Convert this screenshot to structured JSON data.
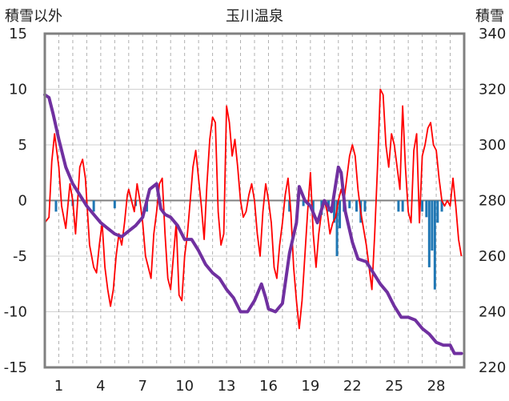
{
  "chart_data": {
    "type": "line",
    "title": "玉川温泉",
    "left_axis_label": "積雪以外",
    "right_axis_label": "積雪",
    "ylim_left": [
      -15,
      15
    ],
    "yticks_left": [
      15,
      10,
      5,
      0,
      -5,
      -10,
      -15
    ],
    "ylim_right": [
      220,
      340
    ],
    "yticks_right": [
      340,
      320,
      300,
      280,
      260,
      240,
      220
    ],
    "xlim": [
      0,
      30
    ],
    "xticks": [
      1,
      4,
      7,
      10,
      13,
      16,
      19,
      22,
      25,
      28
    ],
    "grid": {
      "horizontal": true,
      "vertical_dashed": true
    },
    "legend": "none",
    "colors": {
      "temperature": "#ff0000",
      "snow_depth": "#7030a0",
      "precipitation": "#1f77b4",
      "frame": "#808080",
      "zero_line": "#808080",
      "grid": "#d0d0d0"
    },
    "series": [
      {
        "role": "temperature",
        "axis": "left",
        "points": [
          [
            0.0,
            -2.0
          ],
          [
            0.3,
            -1.5
          ],
          [
            0.5,
            3.5
          ],
          [
            0.7,
            6.0
          ],
          [
            1.0,
            3.0
          ],
          [
            1.2,
            -0.5
          ],
          [
            1.5,
            -2.5
          ],
          [
            1.8,
            1.5
          ],
          [
            2.0,
            0.0
          ],
          [
            2.2,
            -3.0
          ],
          [
            2.5,
            3.0
          ],
          [
            2.7,
            3.7
          ],
          [
            2.9,
            2.0
          ],
          [
            3.2,
            -4.0
          ],
          [
            3.5,
            -6.0
          ],
          [
            3.7,
            -6.5
          ],
          [
            3.9,
            -4.0
          ],
          [
            4.1,
            -2.0
          ],
          [
            4.3,
            -6.0
          ],
          [
            4.5,
            -8.0
          ],
          [
            4.7,
            -9.5
          ],
          [
            4.9,
            -8.0
          ],
          [
            5.1,
            -5.0
          ],
          [
            5.3,
            -3.0
          ],
          [
            5.5,
            -4.0
          ],
          [
            5.7,
            -2.0
          ],
          [
            5.9,
            0.5
          ],
          [
            6.0,
            1.0
          ],
          [
            6.2,
            0.0
          ],
          [
            6.4,
            -1.0
          ],
          [
            6.6,
            1.5
          ],
          [
            6.8,
            0.0
          ],
          [
            7.0,
            -2.0
          ],
          [
            7.2,
            -5.0
          ],
          [
            7.4,
            -6.0
          ],
          [
            7.6,
            -7.0
          ],
          [
            7.8,
            -3.0
          ],
          [
            8.0,
            -1.0
          ],
          [
            8.2,
            1.5
          ],
          [
            8.4,
            2.0
          ],
          [
            8.6,
            -3.0
          ],
          [
            8.8,
            -7.0
          ],
          [
            9.0,
            -8.0
          ],
          [
            9.2,
            -5.0
          ],
          [
            9.4,
            -2.0
          ],
          [
            9.6,
            -8.5
          ],
          [
            9.8,
            -9.0
          ],
          [
            10.0,
            -5.0
          ],
          [
            10.2,
            -3.0
          ],
          [
            10.4,
            0.0
          ],
          [
            10.6,
            3.0
          ],
          [
            10.8,
            4.5
          ],
          [
            11.0,
            2.0
          ],
          [
            11.2,
            -0.5
          ],
          [
            11.4,
            -3.5
          ],
          [
            11.6,
            1.5
          ],
          [
            11.8,
            5.5
          ],
          [
            12.0,
            7.5
          ],
          [
            12.2,
            7.0
          ],
          [
            12.4,
            -1.0
          ],
          [
            12.6,
            -4.0
          ],
          [
            12.8,
            -3.0
          ],
          [
            13.0,
            8.5
          ],
          [
            13.2,
            7.0
          ],
          [
            13.4,
            4.0
          ],
          [
            13.6,
            5.5
          ],
          [
            13.8,
            3.0
          ],
          [
            14.0,
            0.0
          ],
          [
            14.2,
            -1.5
          ],
          [
            14.4,
            -1.0
          ],
          [
            14.6,
            0.5
          ],
          [
            14.8,
            1.5
          ],
          [
            15.0,
            0.0
          ],
          [
            15.2,
            -3.0
          ],
          [
            15.4,
            -5.0
          ],
          [
            15.6,
            -1.0
          ],
          [
            15.8,
            1.5
          ],
          [
            16.0,
            0.0
          ],
          [
            16.2,
            -2.0
          ],
          [
            16.4,
            -6.0
          ],
          [
            16.6,
            -7.0
          ],
          [
            16.8,
            -4.0
          ],
          [
            17.0,
            -2.0
          ],
          [
            17.2,
            0.5
          ],
          [
            17.4,
            2.0
          ],
          [
            17.6,
            -1.0
          ],
          [
            17.8,
            -6.0
          ],
          [
            18.0,
            -9.0
          ],
          [
            18.2,
            -11.5
          ],
          [
            18.4,
            -9.0
          ],
          [
            18.6,
            -5.0
          ],
          [
            18.8,
            -1.0
          ],
          [
            19.0,
            2.5
          ],
          [
            19.2,
            -3.0
          ],
          [
            19.4,
            -6.0
          ],
          [
            19.6,
            -3.0
          ],
          [
            19.8,
            -1.0
          ],
          [
            20.0,
            0.0
          ],
          [
            20.2,
            -1.0
          ],
          [
            20.4,
            -3.0
          ],
          [
            20.6,
            -2.0
          ],
          [
            20.8,
            -1.5
          ],
          [
            21.0,
            0.0
          ],
          [
            21.2,
            1.0
          ],
          [
            21.4,
            0.0
          ],
          [
            21.6,
            2.0
          ],
          [
            21.8,
            4.0
          ],
          [
            22.0,
            5.0
          ],
          [
            22.2,
            4.0
          ],
          [
            22.4,
            1.0
          ],
          [
            22.6,
            -1.0
          ],
          [
            22.8,
            -2.5
          ],
          [
            23.0,
            -4.0
          ],
          [
            23.2,
            -6.0
          ],
          [
            23.4,
            -8.0
          ],
          [
            23.6,
            -3.0
          ],
          [
            23.8,
            3.0
          ],
          [
            24.0,
            10.0
          ],
          [
            24.2,
            9.5
          ],
          [
            24.4,
            5.0
          ],
          [
            24.6,
            3.0
          ],
          [
            24.8,
            6.0
          ],
          [
            25.0,
            5.0
          ],
          [
            25.2,
            3.0
          ],
          [
            25.4,
            1.0
          ],
          [
            25.6,
            8.5
          ],
          [
            25.8,
            3.0
          ],
          [
            26.0,
            -1.0
          ],
          [
            26.2,
            -2.0
          ],
          [
            26.4,
            4.5
          ],
          [
            26.6,
            6.0
          ],
          [
            26.8,
            -2.0
          ],
          [
            27.0,
            4.0
          ],
          [
            27.2,
            5.0
          ],
          [
            27.4,
            6.5
          ],
          [
            27.6,
            7.0
          ],
          [
            27.8,
            5.0
          ],
          [
            28.0,
            4.5
          ],
          [
            28.2,
            2.0
          ],
          [
            28.4,
            0.0
          ],
          [
            28.6,
            -0.5
          ],
          [
            28.8,
            0.0
          ],
          [
            29.0,
            -0.5
          ],
          [
            29.2,
            2.0
          ],
          [
            29.4,
            -0.5
          ],
          [
            29.6,
            -3.5
          ],
          [
            29.8,
            -5.0
          ]
        ]
      },
      {
        "role": "snow_depth",
        "axis": "right",
        "points": [
          [
            0.0,
            318
          ],
          [
            0.3,
            317
          ],
          [
            0.6,
            311
          ],
          [
            1.0,
            302
          ],
          [
            1.5,
            292
          ],
          [
            2.0,
            286
          ],
          [
            2.5,
            282
          ],
          [
            3.0,
            278
          ],
          [
            3.5,
            275
          ],
          [
            4.0,
            272
          ],
          [
            4.5,
            270
          ],
          [
            5.0,
            268
          ],
          [
            5.5,
            267
          ],
          [
            6.0,
            269
          ],
          [
            6.5,
            271
          ],
          [
            7.0,
            274
          ],
          [
            7.5,
            284
          ],
          [
            8.0,
            286
          ],
          [
            8.3,
            277
          ],
          [
            8.6,
            275
          ],
          [
            9.0,
            274
          ],
          [
            9.5,
            271
          ],
          [
            10.0,
            266
          ],
          [
            10.5,
            266
          ],
          [
            11.0,
            262
          ],
          [
            11.5,
            257
          ],
          [
            12.0,
            254
          ],
          [
            12.5,
            252
          ],
          [
            13.0,
            248
          ],
          [
            13.5,
            245
          ],
          [
            14.0,
            240
          ],
          [
            14.5,
            240
          ],
          [
            15.0,
            244
          ],
          [
            15.5,
            250
          ],
          [
            15.8,
            245
          ],
          [
            16.0,
            241
          ],
          [
            16.5,
            240
          ],
          [
            17.0,
            243
          ],
          [
            17.5,
            261
          ],
          [
            18.0,
            272
          ],
          [
            18.2,
            285
          ],
          [
            18.6,
            280
          ],
          [
            19.0,
            278
          ],
          [
            19.5,
            272
          ],
          [
            20.0,
            280
          ],
          [
            20.5,
            276
          ],
          [
            21.0,
            292
          ],
          [
            21.2,
            290
          ],
          [
            21.5,
            276
          ],
          [
            22.0,
            265
          ],
          [
            22.4,
            259
          ],
          [
            23.0,
            258
          ],
          [
            23.5,
            254
          ],
          [
            24.0,
            250
          ],
          [
            24.5,
            247
          ],
          [
            25.0,
            242
          ],
          [
            25.5,
            238
          ],
          [
            26.0,
            238
          ],
          [
            26.5,
            237
          ],
          [
            27.0,
            234
          ],
          [
            27.5,
            232
          ],
          [
            28.0,
            229
          ],
          [
            28.5,
            228
          ],
          [
            29.0,
            228
          ],
          [
            29.3,
            225
          ],
          [
            29.8,
            225
          ]
        ]
      },
      {
        "role": "precipitation",
        "axis": "left",
        "type": "bar",
        "points": [
          [
            0.8,
            -1.0
          ],
          [
            2.0,
            -0.5
          ],
          [
            3.5,
            -1.0
          ],
          [
            5.0,
            -0.7
          ],
          [
            6.5,
            -0.5
          ],
          [
            7.3,
            -1.0
          ],
          [
            17.5,
            -1.0
          ],
          [
            18.5,
            -0.5
          ],
          [
            19.2,
            -1.0
          ],
          [
            19.8,
            -1.3
          ],
          [
            20.3,
            -1.0
          ],
          [
            20.7,
            -2.0
          ],
          [
            20.9,
            -5.0
          ],
          [
            21.1,
            -2.5
          ],
          [
            21.4,
            -1.0
          ],
          [
            21.8,
            -0.7
          ],
          [
            22.3,
            -1.0
          ],
          [
            22.6,
            -2.0
          ],
          [
            22.9,
            -1.0
          ],
          [
            25.3,
            -1.0
          ],
          [
            25.6,
            -1.0
          ],
          [
            27.0,
            -1.0
          ],
          [
            27.3,
            -1.5
          ],
          [
            27.5,
            -6.0
          ],
          [
            27.7,
            -4.5
          ],
          [
            27.9,
            -8.0
          ],
          [
            28.1,
            -2.0
          ],
          [
            28.4,
            -1.0
          ]
        ]
      }
    ]
  }
}
